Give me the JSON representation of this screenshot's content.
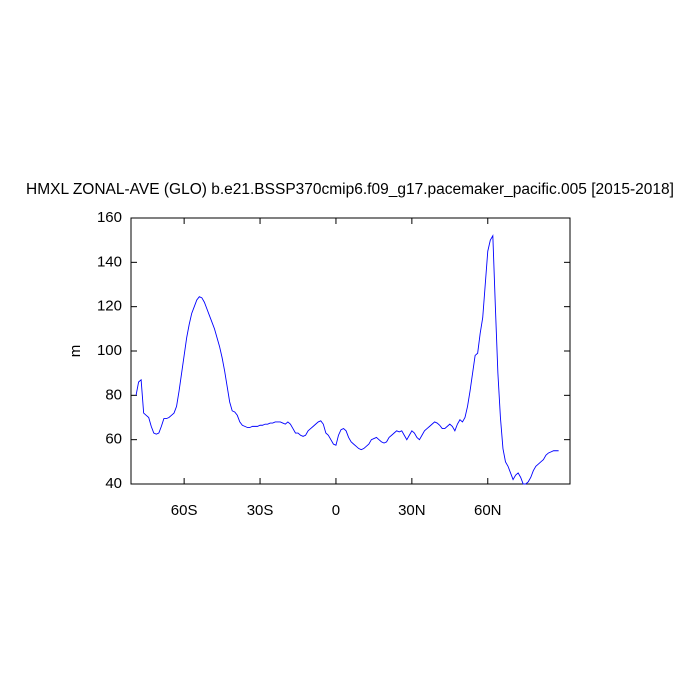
{
  "chart_data": {
    "type": "line",
    "title": "HMXL ZONAL-AVE (GLO) b.e21.BSSP370cmip6.f09_g17.pacemaker_pacific.005 [2015-2018]",
    "y_label": "m",
    "x": [
      -79,
      -78,
      -77,
      -76,
      -75,
      -74,
      -73,
      -72,
      -71,
      -70,
      -69,
      -68,
      -67,
      -66,
      -65,
      -64,
      -63,
      -62,
      -61,
      -60,
      -59,
      -58,
      -57,
      -56,
      -55,
      -54,
      -53,
      -52,
      -51,
      -50,
      -49,
      -48,
      -47,
      -46,
      -45,
      -44,
      -43,
      -42,
      -41,
      -40,
      -39,
      -38,
      -37,
      -36,
      -35,
      -34,
      -33,
      -32,
      -31,
      -30,
      -29,
      -28,
      -27,
      -26,
      -25,
      -24,
      -23,
      -22,
      -21,
      -20,
      -19,
      -18,
      -17,
      -16,
      -15,
      -14,
      -13,
      -12,
      -11,
      -10,
      -9,
      -8,
      -7,
      -6,
      -5,
      -4,
      -3,
      -2,
      -1,
      0,
      1,
      2,
      3,
      4,
      5,
      6,
      7,
      8,
      9,
      10,
      11,
      12,
      13,
      14,
      15,
      16,
      17,
      18,
      19,
      20,
      21,
      22,
      23,
      24,
      25,
      26,
      27,
      28,
      29,
      30,
      31,
      32,
      33,
      34,
      35,
      36,
      37,
      38,
      39,
      40,
      41,
      42,
      43,
      44,
      45,
      46,
      47,
      48,
      49,
      50,
      51,
      52,
      53,
      54,
      55,
      56,
      57,
      58,
      59,
      60,
      61,
      62,
      63,
      64,
      65,
      66,
      67,
      68,
      69,
      70,
      71,
      72,
      73,
      74,
      75,
      76,
      77,
      78,
      79,
      80,
      81,
      82,
      83,
      84,
      85,
      86,
      87,
      88
    ],
    "series": [
      {
        "color": "#0000ff",
        "values": [
          80,
          86,
          87,
          72,
          71,
          70,
          66,
          63,
          62.5,
          63,
          66,
          69.5,
          69.5,
          70,
          71,
          72,
          75,
          82,
          90,
          98,
          106,
          112,
          117,
          120,
          123,
          124.5,
          124,
          122,
          119,
          116,
          113,
          110,
          106,
          102,
          97,
          91,
          84,
          77,
          73,
          72.5,
          71,
          68,
          66.5,
          66,
          65.5,
          65.5,
          66,
          66,
          66,
          66.5,
          66.5,
          67,
          67,
          67.5,
          67.5,
          68,
          68,
          68,
          67.5,
          67,
          68,
          67,
          65,
          63,
          63,
          62,
          61.5,
          62,
          64,
          65,
          66,
          67,
          68,
          68.5,
          67,
          63,
          62,
          60,
          58,
          57.5,
          62,
          64.5,
          65,
          64,
          61,
          59,
          58,
          57,
          56,
          55.5,
          56,
          57,
          58,
          60,
          60.5,
          61,
          60,
          59,
          58.5,
          59,
          61,
          62,
          63,
          64,
          63.5,
          64,
          62,
          60,
          62,
          64,
          63,
          61,
          60,
          62,
          64,
          65,
          66,
          67,
          68,
          67.5,
          66.5,
          65,
          65,
          66,
          67,
          66,
          64,
          67,
          69,
          68,
          70,
          75,
          82,
          90,
          98,
          99,
          108,
          115,
          130,
          145,
          150,
          152,
          120,
          90,
          70,
          56,
          50,
          48,
          45,
          42,
          44,
          45,
          43,
          40,
          40,
          41,
          43,
          46,
          48,
          49,
          50,
          51,
          53,
          54,
          54.5,
          55,
          55,
          55
        ]
      }
    ],
    "xlim": [
      -81,
      92.5
    ],
    "ylim": [
      40,
      160
    ],
    "xticks": [
      {
        "value": -60,
        "label": "60S"
      },
      {
        "value": -30,
        "label": "30S"
      },
      0,
      {
        "value": 30,
        "label": "30N"
      },
      {
        "value": 60,
        "label": "60N"
      }
    ],
    "yticks": [
      40,
      60,
      80,
      100,
      120,
      140,
      160
    ]
  }
}
